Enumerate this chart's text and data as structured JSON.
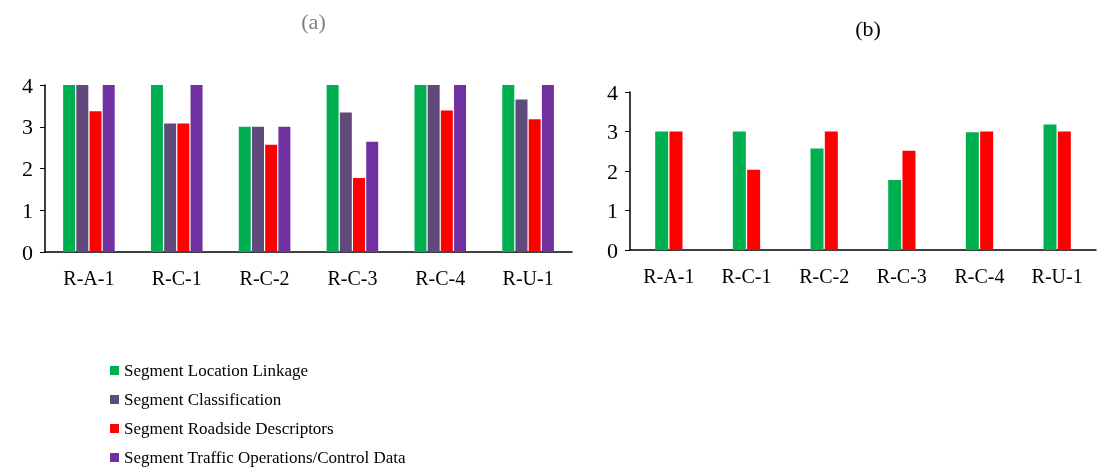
{
  "chart_data": [
    {
      "type": "bar",
      "title": "(a)",
      "categories": [
        "R-A-1",
        "R-C-1",
        "R-C-2",
        "R-C-3",
        "R-C-4",
        "R-U-1"
      ],
      "series": [
        {
          "name": "Segment Location Linkage",
          "color": "#00b050",
          "values": [
            4,
            4,
            3,
            4,
            4,
            4
          ]
        },
        {
          "name": "Segment Classification",
          "color": "#604a7b",
          "values": [
            4,
            3.08,
            3,
            3.34,
            4,
            3.65
          ]
        },
        {
          "name": "Segment Roadside Descriptors",
          "color": "#ff0000",
          "values": [
            3.37,
            3.08,
            2.57,
            1.77,
            3.39,
            3.18
          ]
        },
        {
          "name": "Segment Traffic Operations/Control Data",
          "color": "#7030a0",
          "values": [
            4,
            4,
            3,
            2.64,
            4,
            4
          ]
        }
      ],
      "ylim": [
        0,
        4
      ],
      "yticks": [
        0,
        1,
        2,
        3,
        4
      ],
      "grid": false,
      "legend": "bottom left"
    },
    {
      "type": "bar",
      "title": "(b)",
      "categories": [
        "R-A-1",
        "R-C-1",
        "R-C-2",
        "R-C-3",
        "R-C-4",
        "R-U-1"
      ],
      "series": [
        {
          "color": "#00b050",
          "values": [
            3,
            3,
            2.57,
            1.77,
            2.98,
            3.18
          ]
        },
        {
          "color": "#ff0000",
          "values": [
            3,
            2.03,
            3,
            2.51,
            3,
            3
          ]
        }
      ],
      "ylim": [
        0,
        4
      ],
      "yticks": [
        0,
        1,
        2,
        3,
        4
      ],
      "grid": false
    }
  ]
}
